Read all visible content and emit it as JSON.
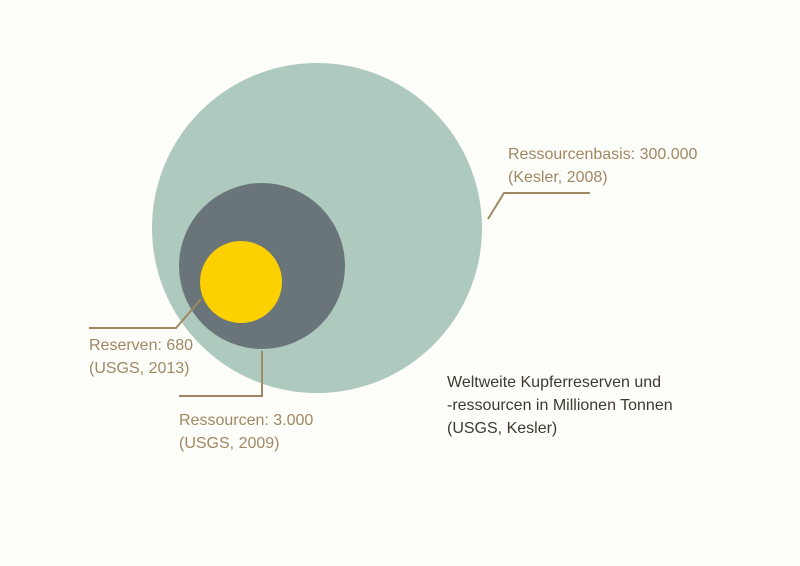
{
  "diagram": {
    "resource_base": {
      "label": "Ressourcenbasis: 300.000",
      "source": "(Kesler, 2008)",
      "value": 300000,
      "color": "#aec9be"
    },
    "resources": {
      "label": "Ressourcen: 3.000",
      "source": "(USGS, 2009)",
      "value": 3000,
      "color": "#6a757a"
    },
    "reserves": {
      "label": "Reserven: 680",
      "source": "(USGS, 2013)",
      "value": 680,
      "color": "#fdd000"
    },
    "leader_color": "#a08863"
  },
  "caption": {
    "line1": "Weltweite Kupferreserven und",
    "line2": "-ressourcen in Millionen Tonnen",
    "line3": "(USGS, Kesler)"
  }
}
